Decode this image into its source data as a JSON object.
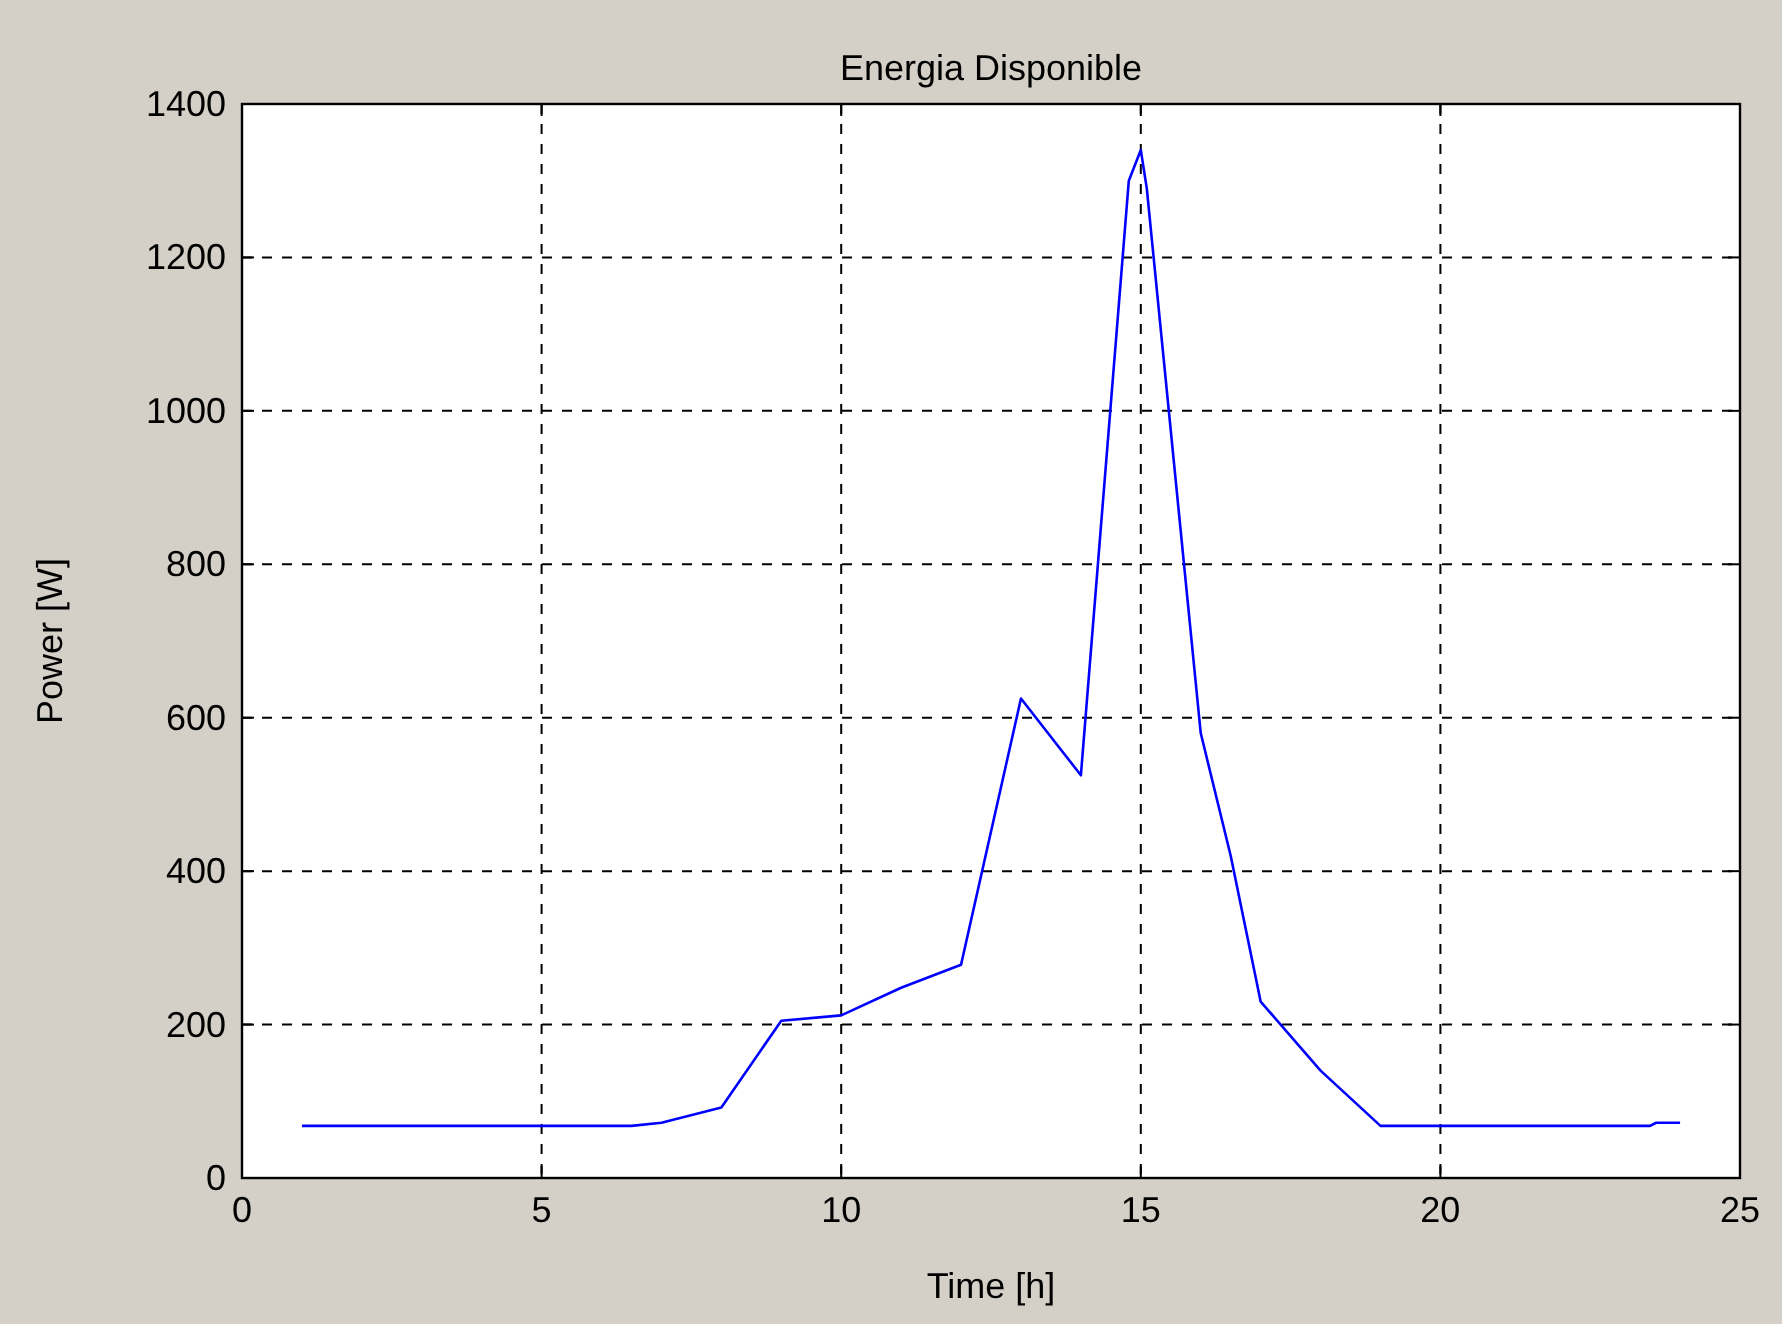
{
  "chart_data": {
    "type": "line",
    "title": "Energia Disponible",
    "xlabel": "Time [h]",
    "ylabel": "Power [W]",
    "series": [
      {
        "color": "#0000ff",
        "x": [
          1,
          6.5,
          7,
          8,
          9,
          10,
          11,
          12,
          13,
          14,
          14.8,
          15,
          15.1,
          16,
          16.5,
          17,
          18,
          19,
          23.5,
          23.6,
          24
        ],
        "values": [
          68,
          68,
          72,
          92,
          205,
          212,
          248,
          278,
          625,
          525,
          1300,
          1340,
          1290,
          580,
          420,
          230,
          140,
          68,
          68,
          72,
          72
        ]
      }
    ],
    "xlim": [
      0,
      25
    ],
    "xticks": [
      0,
      5,
      10,
      15,
      20,
      25
    ],
    "ylim": [
      0,
      1400
    ],
    "yticks": [
      0,
      200,
      400,
      600,
      800,
      1000,
      1200,
      1400
    ],
    "grid": true,
    "marker": "none",
    "line_style": "solid"
  }
}
